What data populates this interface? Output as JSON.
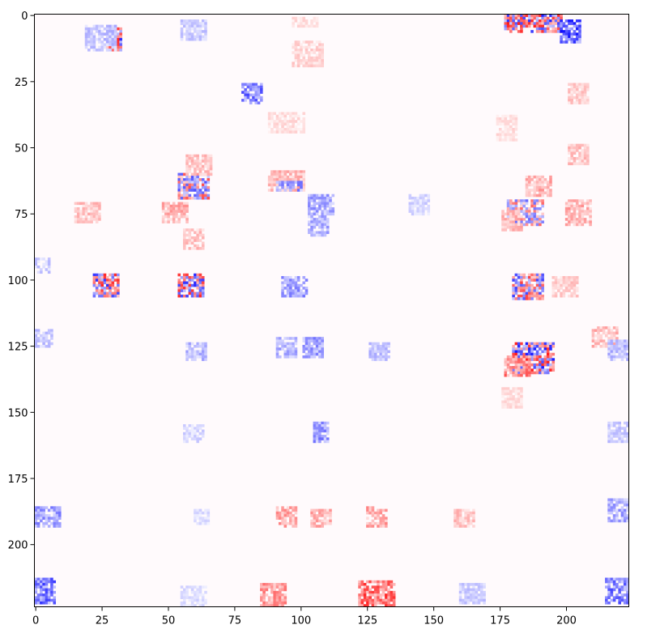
{
  "chart_data": {
    "type": "heatmap",
    "title": "",
    "xlabel": "",
    "ylabel": "",
    "xlim": [
      0,
      224
    ],
    "ylim": [
      224,
      0
    ],
    "x_ticks": [
      0,
      25,
      50,
      75,
      100,
      125,
      150,
      175,
      200
    ],
    "y_ticks": [
      0,
      25,
      50,
      75,
      100,
      125,
      150,
      175,
      200
    ],
    "grid": false,
    "colormap": "bwr",
    "colors": {
      "negative": "#0000ff",
      "zero": "#ffffff",
      "positive": "#ff0000",
      "background": "#fffafc"
    },
    "value_range": [
      -1,
      1
    ],
    "blobs": [
      {
        "x": 30,
        "y": 9,
        "w": 6,
        "h": 9,
        "v": 0.9,
        "mix": true
      },
      {
        "x": 25,
        "y": 9,
        "w": 12,
        "h": 10,
        "v": -0.35
      },
      {
        "x": 188,
        "y": 3,
        "w": 22,
        "h": 7,
        "v": 0.9,
        "mix": true
      },
      {
        "x": 202,
        "y": 6,
        "w": 8,
        "h": 9,
        "v": -0.95
      },
      {
        "x": 60,
        "y": 6,
        "w": 10,
        "h": 8,
        "v": -0.3
      },
      {
        "x": 102,
        "y": 3,
        "w": 10,
        "h": 4,
        "v": 0.2
      },
      {
        "x": 103,
        "y": 15,
        "w": 12,
        "h": 10,
        "v": 0.25
      },
      {
        "x": 82,
        "y": 30,
        "w": 8,
        "h": 8,
        "v": -0.75
      },
      {
        "x": 95,
        "y": 41,
        "w": 14,
        "h": 8,
        "v": 0.2
      },
      {
        "x": 205,
        "y": 30,
        "w": 8,
        "h": 8,
        "v": 0.3
      },
      {
        "x": 178,
        "y": 43,
        "w": 8,
        "h": 10,
        "v": 0.2
      },
      {
        "x": 205,
        "y": 53,
        "w": 8,
        "h": 8,
        "v": 0.35
      },
      {
        "x": 60,
        "y": 65,
        "w": 12,
        "h": 10,
        "v": -0.7,
        "mix": true
      },
      {
        "x": 62,
        "y": 57,
        "w": 10,
        "h": 8,
        "v": 0.35
      },
      {
        "x": 53,
        "y": 75,
        "w": 10,
        "h": 8,
        "v": 0.45
      },
      {
        "x": 95,
        "y": 63,
        "w": 14,
        "h": 8,
        "v": 0.4
      },
      {
        "x": 96,
        "y": 65,
        "w": 10,
        "h": 4,
        "v": -0.6
      },
      {
        "x": 108,
        "y": 72,
        "w": 10,
        "h": 8,
        "v": -0.5
      },
      {
        "x": 107,
        "y": 80,
        "w": 8,
        "h": 8,
        "v": -0.45
      },
      {
        "x": 20,
        "y": 75,
        "w": 10,
        "h": 8,
        "v": 0.35
      },
      {
        "x": 185,
        "y": 75,
        "w": 14,
        "h": 10,
        "v": -0.6,
        "mix": true
      },
      {
        "x": 190,
        "y": 65,
        "w": 10,
        "h": 8,
        "v": 0.45
      },
      {
        "x": 205,
        "y": 75,
        "w": 10,
        "h": 10,
        "v": 0.45
      },
      {
        "x": 180,
        "y": 78,
        "w": 8,
        "h": 8,
        "v": 0.4
      },
      {
        "x": 145,
        "y": 72,
        "w": 8,
        "h": 8,
        "v": -0.25
      },
      {
        "x": 60,
        "y": 85,
        "w": 8,
        "h": 8,
        "v": 0.35
      },
      {
        "x": 27,
        "y": 102,
        "w": 10,
        "h": 9,
        "v": 0.85,
        "mix": true
      },
      {
        "x": 59,
        "y": 102,
        "w": 10,
        "h": 9,
        "v": -0.85,
        "mix": true
      },
      {
        "x": 98,
        "y": 103,
        "w": 10,
        "h": 8,
        "v": -0.55
      },
      {
        "x": 186,
        "y": 103,
        "w": 12,
        "h": 10,
        "v": 0.75,
        "mix": true
      },
      {
        "x": 200,
        "y": 103,
        "w": 10,
        "h": 8,
        "v": 0.3
      },
      {
        "x": 3,
        "y": 95,
        "w": 6,
        "h": 6,
        "v": -0.3
      },
      {
        "x": 188,
        "y": 130,
        "w": 16,
        "h": 12,
        "v": -0.9,
        "mix": true
      },
      {
        "x": 182,
        "y": 133,
        "w": 10,
        "h": 8,
        "v": 0.7
      },
      {
        "x": 215,
        "y": 122,
        "w": 10,
        "h": 8,
        "v": 0.4
      },
      {
        "x": 220,
        "y": 127,
        "w": 8,
        "h": 8,
        "v": -0.4
      },
      {
        "x": 61,
        "y": 127,
        "w": 8,
        "h": 7,
        "v": -0.4
      },
      {
        "x": 95,
        "y": 126,
        "w": 8,
        "h": 8,
        "v": -0.45
      },
      {
        "x": 105,
        "y": 126,
        "w": 8,
        "h": 8,
        "v": -0.55
      },
      {
        "x": 130,
        "y": 127,
        "w": 8,
        "h": 7,
        "v": -0.35
      },
      {
        "x": 3,
        "y": 122,
        "w": 7,
        "h": 7,
        "v": -0.35
      },
      {
        "x": 180,
        "y": 145,
        "w": 8,
        "h": 8,
        "v": 0.2
      },
      {
        "x": 108,
        "y": 158,
        "w": 6,
        "h": 8,
        "v": -0.6
      },
      {
        "x": 60,
        "y": 158,
        "w": 8,
        "h": 7,
        "v": -0.25
      },
      {
        "x": 220,
        "y": 158,
        "w": 8,
        "h": 8,
        "v": -0.3
      },
      {
        "x": 3,
        "y": 190,
        "w": 10,
        "h": 8,
        "v": -0.55
      },
      {
        "x": 95,
        "y": 190,
        "w": 8,
        "h": 8,
        "v": 0.5
      },
      {
        "x": 108,
        "y": 190,
        "w": 8,
        "h": 7,
        "v": 0.45
      },
      {
        "x": 129,
        "y": 190,
        "w": 8,
        "h": 8,
        "v": 0.5
      },
      {
        "x": 162,
        "y": 190,
        "w": 8,
        "h": 7,
        "v": 0.35
      },
      {
        "x": 220,
        "y": 187,
        "w": 8,
        "h": 9,
        "v": -0.5
      },
      {
        "x": 63,
        "y": 190,
        "w": 6,
        "h": 6,
        "v": -0.2
      },
      {
        "x": 3,
        "y": 218,
        "w": 8,
        "h": 10,
        "v": -0.8
      },
      {
        "x": 129,
        "y": 219,
        "w": 14,
        "h": 10,
        "v": 0.85
      },
      {
        "x": 90,
        "y": 219,
        "w": 10,
        "h": 9,
        "v": 0.6
      },
      {
        "x": 220,
        "y": 218,
        "w": 10,
        "h": 10,
        "v": -0.75
      },
      {
        "x": 165,
        "y": 219,
        "w": 10,
        "h": 8,
        "v": -0.3
      },
      {
        "x": 60,
        "y": 220,
        "w": 10,
        "h": 8,
        "v": -0.2
      }
    ]
  }
}
